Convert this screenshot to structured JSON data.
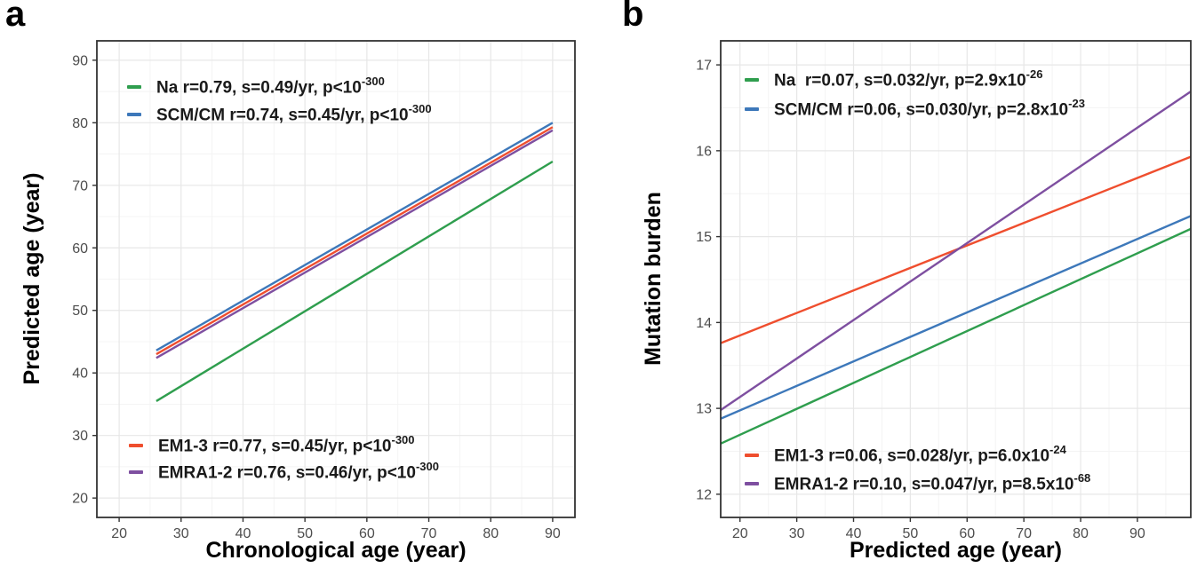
{
  "figure": {
    "panel_a_label": "a",
    "panel_b_label": "b"
  },
  "theme": {
    "background": "#ffffff",
    "grid_major": "#e7e7e7",
    "grid_minor": "#f4f4f4",
    "border": "#333333",
    "tick_label_color": "#4d4d4d",
    "text_color": "#000000"
  },
  "chart_data": [
    {
      "id": "a",
      "type": "line",
      "xlabel": "Chronological age (year)",
      "ylabel": "Predicted age (year)",
      "xlim": [
        16.4,
        93.6
      ],
      "ylim": [
        16.9,
        93.1
      ],
      "xticks": [
        20,
        30,
        40,
        50,
        60,
        70,
        80,
        90
      ],
      "yticks": [
        20,
        30,
        40,
        50,
        60,
        70,
        80,
        90
      ],
      "x_minor_step": 5,
      "y_minor_step": 5,
      "grid": "major+minor",
      "legend_position": "inside top-left and bottom-left",
      "series": [
        {
          "name": "Na",
          "color": "#2f9e4e",
          "x": [
            26,
            90
          ],
          "y": [
            35.5,
            73.8
          ],
          "legend": {
            "pre": "Na r=0.79, s=0.49/yr, p<10",
            "sup": "-300"
          }
        },
        {
          "name": "SCM/CM",
          "color": "#3d78ba",
          "x": [
            26,
            90
          ],
          "y": [
            43.6,
            80.0
          ],
          "legend": {
            "pre": "SCM/CM r=0.74, s=0.45/yr, p<10",
            "sup": "-300"
          }
        },
        {
          "name": "EM1-3",
          "color": "#ef4e2e",
          "x": [
            26,
            90
          ],
          "y": [
            43.0,
            79.3
          ],
          "legend": {
            "pre": "EM1-3 r=0.77, s=0.45/yr, p<10",
            "sup": "-300"
          }
        },
        {
          "name": "EMRA1-2",
          "color": "#7e4fa0",
          "x": [
            26,
            90
          ],
          "y": [
            42.4,
            78.8
          ],
          "legend": {
            "pre": "EMRA1-2 r=0.76, s=0.46/yr, p<10",
            "sup": "-300"
          }
        }
      ]
    },
    {
      "id": "b",
      "type": "line",
      "xlabel": "Predicted age (year)",
      "ylabel": "Mutation burden",
      "xlim": [
        16.6,
        99.4
      ],
      "ylim": [
        11.73,
        17.28
      ],
      "xticks": [
        20,
        30,
        40,
        50,
        60,
        70,
        80,
        90
      ],
      "yticks": [
        12,
        13,
        14,
        15,
        16,
        17
      ],
      "x_minor_step": 5,
      "y_minor_step": 0.5,
      "grid": "major+minor",
      "legend_position": "inside top-left and bottom-left",
      "series": [
        {
          "name": "Na",
          "color": "#2f9e4e",
          "x": [
            16.6,
            99.4
          ],
          "y": [
            12.59,
            15.09
          ],
          "legend": {
            "pre": "Na  r=0.07, s=0.032/yr, p=2.9x10",
            "sup": "-26"
          }
        },
        {
          "name": "SCM/CM",
          "color": "#3d78ba",
          "x": [
            16.6,
            99.4
          ],
          "y": [
            12.88,
            15.24
          ],
          "legend": {
            "pre": "SCM/CM r=0.06, s=0.030/yr, p=2.8x10",
            "sup": "-23"
          }
        },
        {
          "name": "EM1-3",
          "color": "#ef4e2e",
          "x": [
            16.6,
            99.4
          ],
          "y": [
            13.76,
            15.93
          ],
          "legend": {
            "pre": "EM1-3 r=0.06, s=0.028/yr, p=6.0x10",
            "sup": "-24"
          }
        },
        {
          "name": "EMRA1-2",
          "color": "#7e4fa0",
          "x": [
            16.6,
            99.4
          ],
          "y": [
            12.98,
            16.69
          ],
          "legend": {
            "pre": "EMRA1-2 r=0.10, s=0.047/yr, p=8.5x10",
            "sup": "-68"
          }
        }
      ]
    }
  ]
}
